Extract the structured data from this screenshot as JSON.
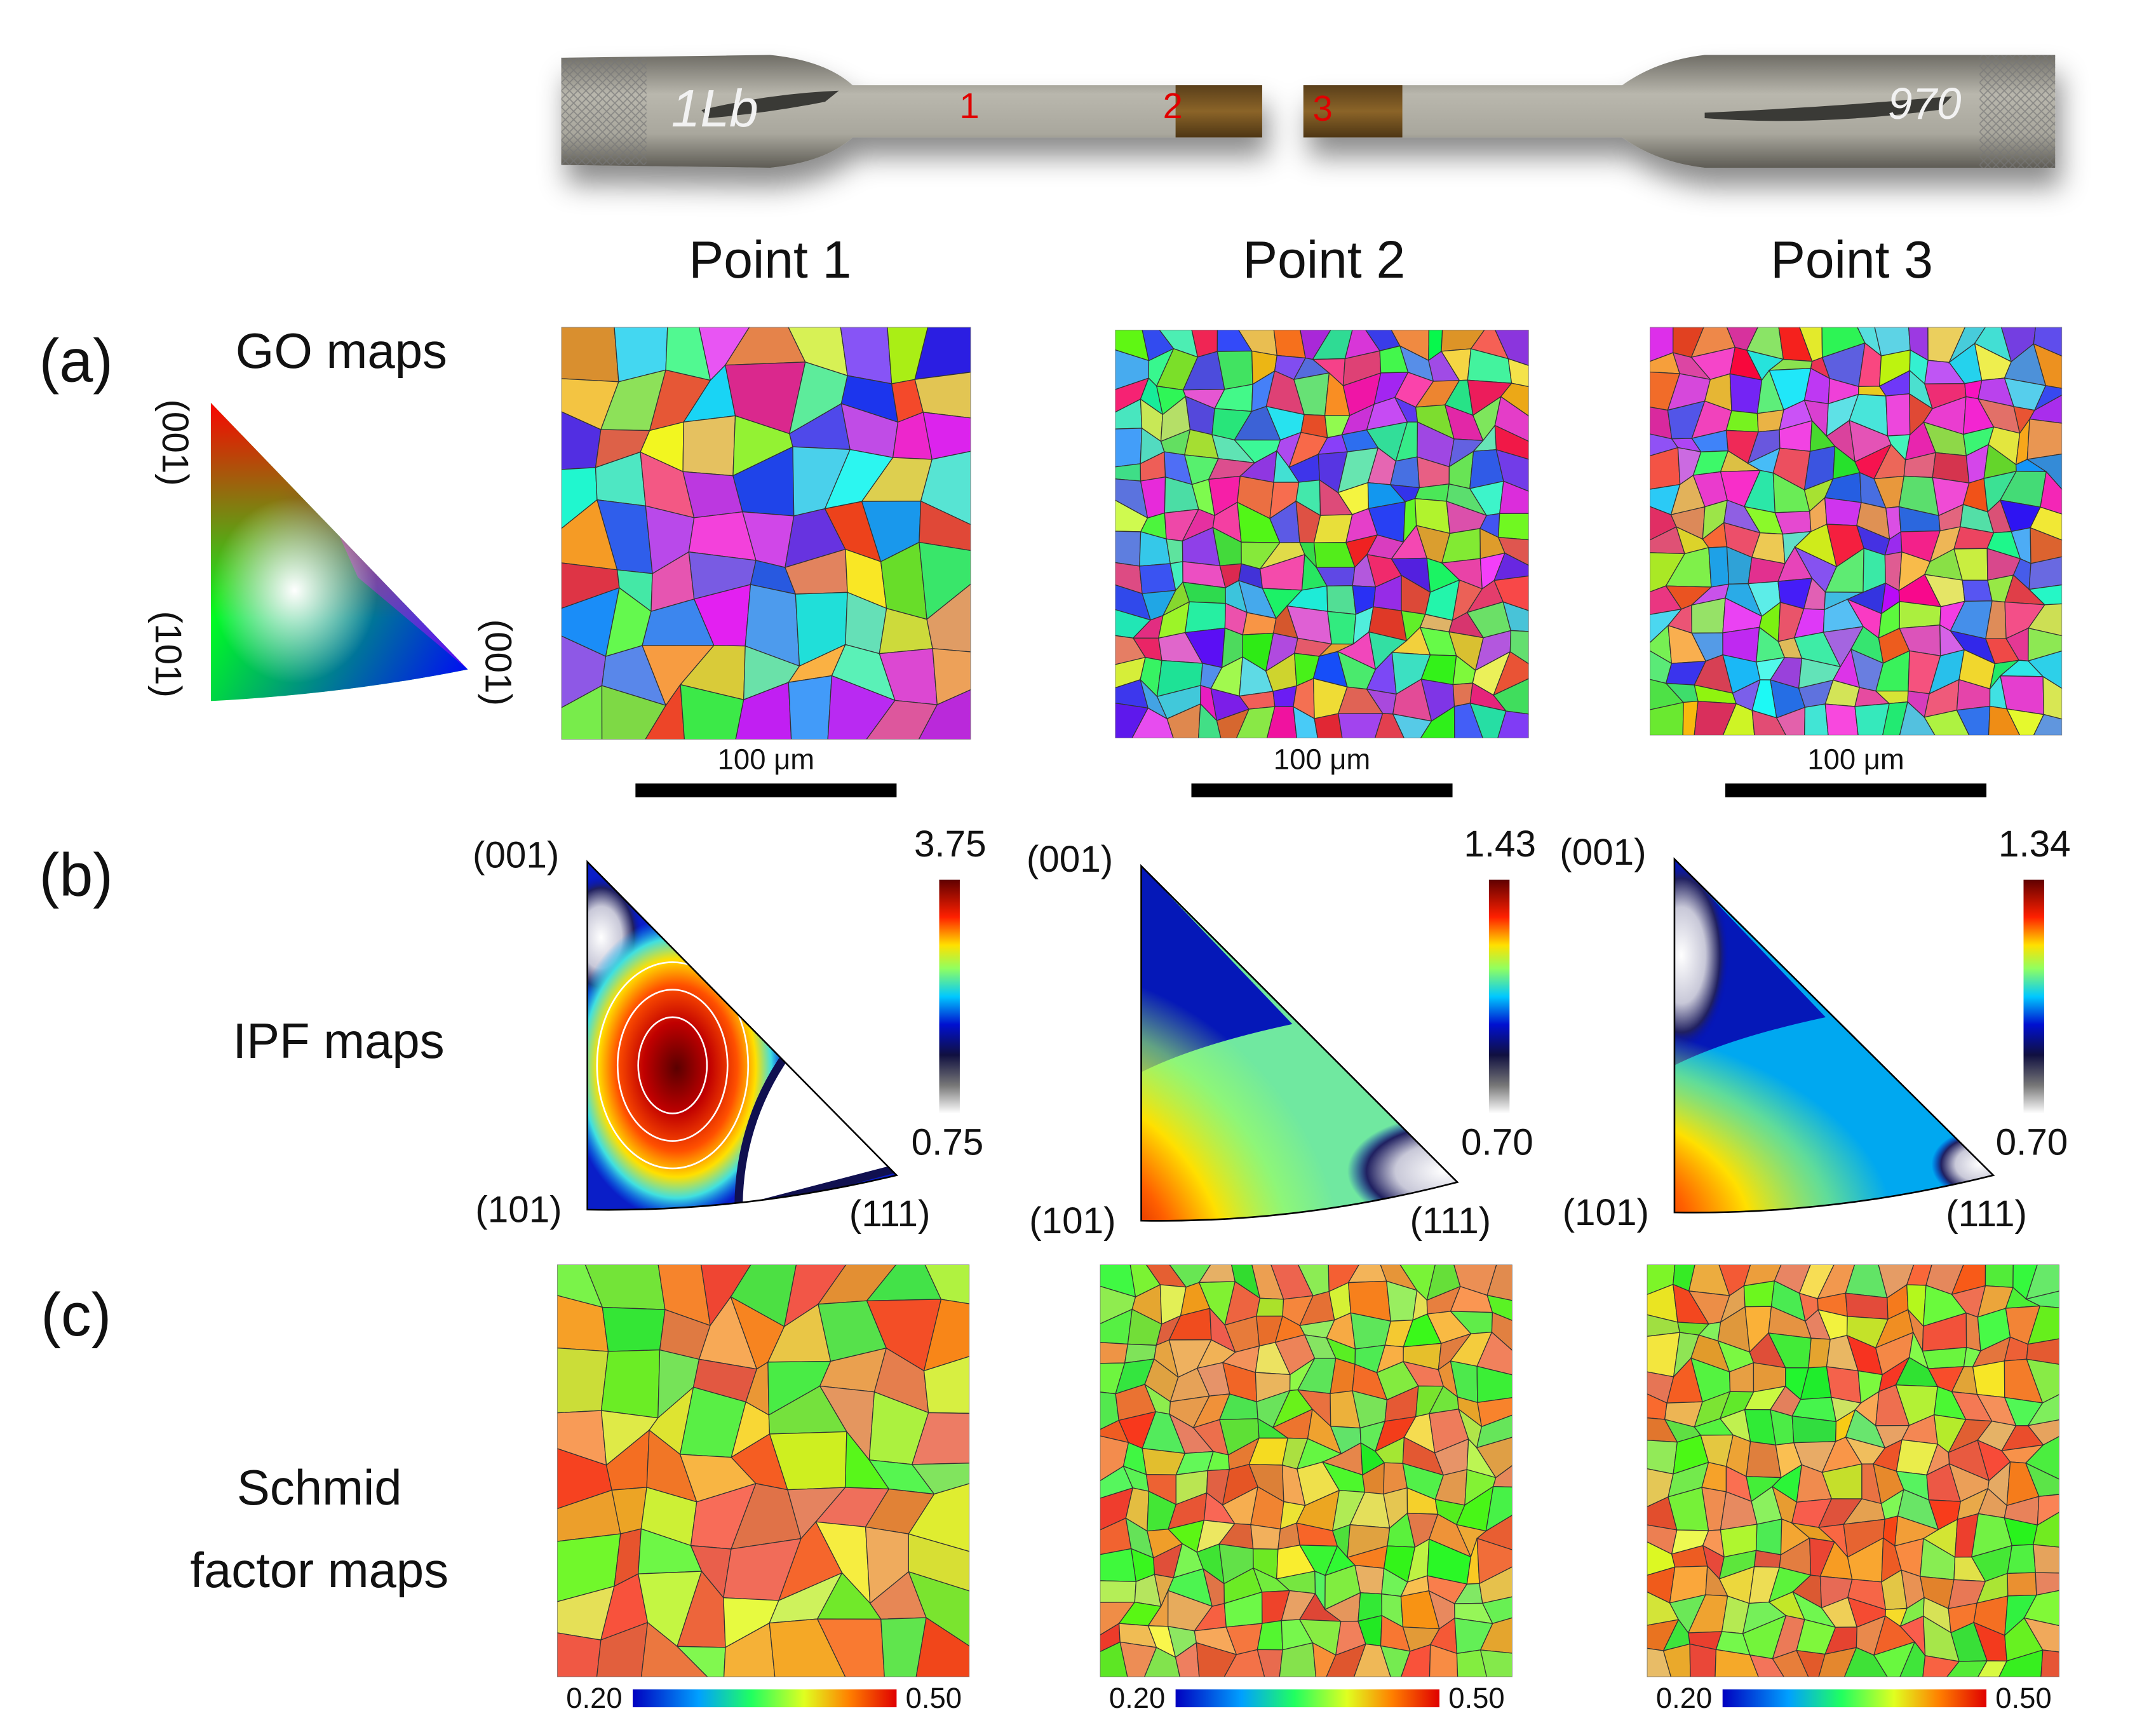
{
  "specimen": {
    "marks": [
      "1Lb",
      "970"
    ],
    "points": [
      "1",
      "2",
      "3"
    ]
  },
  "columns": [
    {
      "title": "Point 1",
      "go_scale_bar": "100 μm",
      "ipf": {
        "corners": [
          "(001)",
          "(101)",
          "(111)"
        ],
        "max": "3.75",
        "min": "0.75"
      },
      "schmid_scale": {
        "min": "0.20",
        "max": "0.50"
      }
    },
    {
      "title": "Point 2",
      "go_scale_bar": "100 μm",
      "ipf": {
        "corners": [
          "(001)",
          "(101)",
          "(111)"
        ],
        "max": "1.43",
        "min": "0.70"
      },
      "schmid_scale": {
        "min": "0.20",
        "max": "0.50"
      }
    },
    {
      "title": "Point 3",
      "go_scale_bar": "100 μm",
      "ipf": {
        "corners": [
          "(001)",
          "(101)",
          "(111)"
        ],
        "max": "1.34",
        "min": "0.70"
      },
      "schmid_scale": {
        "min": "0.20",
        "max": "0.50"
      }
    }
  ],
  "rows": [
    {
      "label": "(a)",
      "title": "GO maps"
    },
    {
      "label": "(b)",
      "title": "IPF maps"
    },
    {
      "label": "(c)",
      "title": [
        "Schmid",
        "factor maps"
      ]
    }
  ],
  "ipf_key": {
    "labels": [
      "(001)",
      "(101)",
      "(001)"
    ]
  }
}
